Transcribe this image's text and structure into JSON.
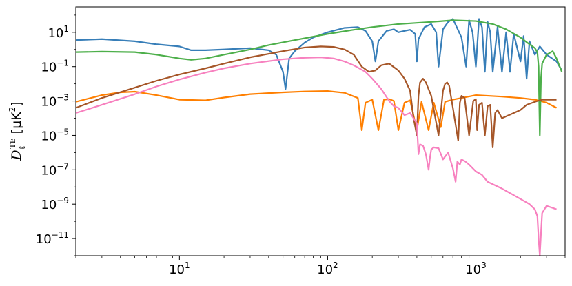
{
  "chart_data": {
    "type": "line",
    "title": "",
    "xlabel": "",
    "ylabel": "",
    "ylabel_parts": {
      "symbol": "D",
      "subscript": "ℓ",
      "superscript": "TE",
      "unit_open": "[μK",
      "unit_power": "2",
      "unit_close": "]"
    },
    "xscale": "log",
    "yscale": "log",
    "xlim": [
      2,
      4000
    ],
    "ylim": [
      1e-12,
      300
    ],
    "grid": false,
    "legend": "none",
    "x_ticks": [
      {
        "value": 10,
        "label": "10",
        "exp": "1"
      },
      {
        "value": 100,
        "label": "10",
        "exp": "2"
      },
      {
        "value": 1000,
        "label": "10",
        "exp": "3"
      }
    ],
    "y_ticks": [
      {
        "value": 10,
        "label": "10",
        "exp": "1"
      },
      {
        "value": 0.1,
        "label": "10",
        "exp": "−1"
      },
      {
        "value": 0.001,
        "label": "10",
        "exp": "−3"
      },
      {
        "value": 1e-05,
        "label": "10",
        "exp": "−5"
      },
      {
        "value": 1e-07,
        "label": "10",
        "exp": "−7"
      },
      {
        "value": 1e-09,
        "label": "10",
        "exp": "−9"
      },
      {
        "value": 1e-11,
        "label": "10",
        "exp": "−11"
      }
    ],
    "series": [
      {
        "color": "#ff7f00",
        "x": [
          2,
          3,
          4,
          5,
          7,
          10,
          15,
          20,
          30,
          50,
          70,
          100,
          130,
          160,
          170,
          180,
          200,
          220,
          240,
          260,
          280,
          300,
          330,
          360,
          400,
          430,
          480,
          520,
          580,
          620,
          700,
          800,
          1000,
          1500,
          2000,
          2500,
          3000,
          3500
        ],
        "y": [
          0.0009,
          0.0022,
          0.0032,
          0.0035,
          0.0022,
          0.0012,
          0.0011,
          0.0016,
          0.0025,
          0.0032,
          0.0036,
          0.0038,
          0.003,
          0.0015,
          2e-05,
          0.0008,
          0.0012,
          2e-05,
          0.0012,
          0.0013,
          0.001,
          2e-05,
          0.0008,
          0.0011,
          2e-05,
          0.0009,
          2e-05,
          0.0008,
          3e-05,
          0.0009,
          0.0012,
          0.0015,
          0.0022,
          0.0018,
          0.0015,
          0.0012,
          0.0008,
          0.0004
        ]
      },
      {
        "color": "#377eb8",
        "x": [
          2,
          3,
          5,
          7,
          10,
          12,
          15,
          20,
          30,
          40,
          45,
          50,
          52,
          55,
          60,
          70,
          80,
          100,
          130,
          160,
          180,
          200,
          210,
          220,
          250,
          280,
          300,
          330,
          360,
          390,
          400,
          410,
          450,
          500,
          540,
          560,
          600,
          650,
          700,
          800,
          860,
          900,
          950,
          1000,
          1050,
          1100,
          1150,
          1200,
          1250,
          1300,
          1400,
          1500,
          1600,
          1700,
          1800,
          2000,
          2100,
          2200,
          2300,
          2500,
          2700,
          3000,
          3500,
          3800
        ],
        "y": [
          3.5,
          4.0,
          3.0,
          2.0,
          1.5,
          0.9,
          0.9,
          1.0,
          1.2,
          0.9,
          0.5,
          0.05,
          0.005,
          0.3,
          0.8,
          2.5,
          5.0,
          10,
          18,
          20,
          12,
          3,
          0.2,
          3,
          12,
          15,
          10,
          12,
          14,
          8,
          0.2,
          4,
          20,
          30,
          10,
          0.1,
          15,
          40,
          60,
          5,
          0.1,
          50,
          10,
          0.1,
          60,
          20,
          0.05,
          40,
          10,
          0.05,
          20,
          0.05,
          10,
          0.05,
          8,
          0.2,
          6,
          0.02,
          3,
          0.5,
          1.5,
          0.5,
          0.2,
          0.06
        ]
      },
      {
        "color": "#4daf4a",
        "x": [
          2,
          3,
          5,
          7,
          10,
          12,
          15,
          20,
          30,
          40,
          60,
          100,
          150,
          200,
          300,
          500,
          700,
          1000,
          1300,
          1600,
          2000,
          2300,
          2500,
          2600,
          2650,
          2700,
          2750,
          2800,
          3000,
          3300,
          3500,
          3800
        ],
        "y": [
          0.7,
          0.75,
          0.7,
          0.5,
          0.3,
          0.25,
          0.3,
          0.5,
          1.0,
          1.8,
          3.5,
          8,
          14,
          20,
          30,
          40,
          50,
          45,
          30,
          15,
          5,
          2,
          1.2,
          0.7,
          0.1,
          1e-05,
          0.02,
          0.15,
          0.5,
          0.8,
          0.3,
          0.05
        ]
      },
      {
        "color": "#a65628",
        "x": [
          2,
          3,
          5,
          7,
          10,
          15,
          20,
          30,
          50,
          70,
          90,
          110,
          130,
          150,
          170,
          190,
          210,
          230,
          260,
          300,
          330,
          360,
          380,
          400,
          410,
          420,
          440,
          460,
          500,
          560,
          600,
          620,
          640,
          660,
          700,
          760,
          780,
          800,
          840,
          900,
          960,
          1000,
          1020,
          1050,
          1100,
          1150,
          1200,
          1250,
          1300,
          1350,
          1400,
          1500,
          1800,
          2000,
          2200,
          2500,
          2800,
          3000,
          3500
        ],
        "y": [
          0.0004,
          0.0015,
          0.006,
          0.015,
          0.035,
          0.08,
          0.15,
          0.35,
          0.8,
          1.3,
          1.5,
          1.4,
          1.0,
          0.5,
          0.1,
          0.05,
          0.06,
          0.12,
          0.15,
          0.06,
          0.02,
          0.004,
          0.0001,
          1e-05,
          0.002,
          0.012,
          0.02,
          0.012,
          0.002,
          1e-05,
          0.004,
          0.01,
          0.012,
          0.008,
          0.0004,
          5e-06,
          0.0008,
          0.002,
          0.0015,
          1e-05,
          0.001,
          0.0013,
          2e-05,
          0.0006,
          0.0008,
          1e-05,
          0.0005,
          0.0006,
          2e-06,
          0.0002,
          0.0003,
          0.0001,
          0.0002,
          0.0003,
          0.0006,
          0.0009,
          0.0012,
          0.0012,
          0.0012
        ]
      },
      {
        "color": "#f781bf",
        "x": [
          2,
          3,
          5,
          7,
          10,
          15,
          20,
          30,
          50,
          70,
          90,
          110,
          130,
          150,
          180,
          200,
          230,
          260,
          280,
          300,
          330,
          360,
          400,
          410,
          420,
          440,
          460,
          480,
          490,
          500,
          520,
          560,
          600,
          650,
          700,
          730,
          750,
          780,
          800,
          850,
          900,
          1000,
          1100,
          1200,
          1500,
          2000,
          2300,
          2500,
          2600,
          2650,
          2700,
          2750,
          2800,
          3000,
          3300,
          3500
        ],
        "y": [
          0.0002,
          0.0006,
          0.0025,
          0.007,
          0.018,
          0.045,
          0.08,
          0.15,
          0.27,
          0.33,
          0.35,
          0.3,
          0.2,
          0.12,
          0.05,
          0.02,
          0.005,
          0.001,
          0.0005,
          0.0004,
          0.00015,
          0.0002,
          5e-05,
          8e-07,
          3e-06,
          2.5e-06,
          8e-07,
          1e-07,
          5e-07,
          1.5e-06,
          2e-06,
          1.8e-06,
          4e-07,
          1e-06,
          1.2e-07,
          2e-08,
          3e-07,
          2e-07,
          4e-07,
          3e-07,
          2e-07,
          8e-08,
          5e-08,
          2e-08,
          8e-09,
          2e-09,
          1e-09,
          5e-10,
          2e-10,
          1e-11,
          1e-12,
          2e-11,
          3e-10,
          8e-10,
          6e-10,
          5e-10
        ]
      }
    ]
  }
}
